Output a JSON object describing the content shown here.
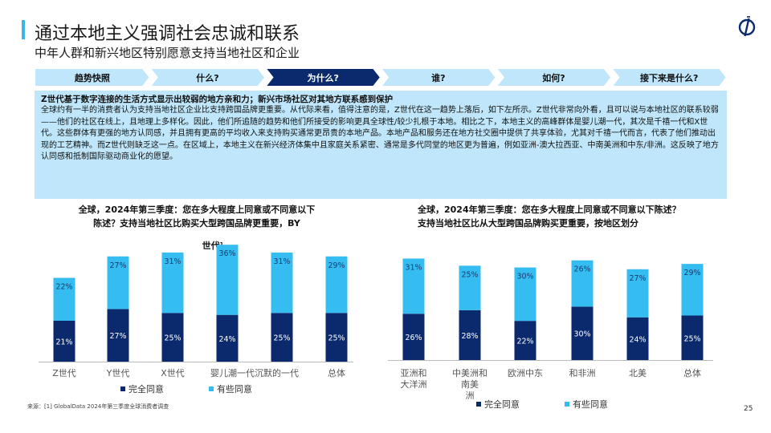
{
  "header": {
    "title": "通过本地主义强调社会忠诚和联系",
    "subtitle": "中年人群和新兴地区特别愿意支持当地社区和企业"
  },
  "nav": {
    "steps": [
      {
        "label": "趋势快照",
        "active": false
      },
      {
        "label": "什么?",
        "active": false
      },
      {
        "label": "为什么?",
        "active": true
      },
      {
        "label": "谁?",
        "active": false
      },
      {
        "label": "如何?",
        "active": false
      },
      {
        "label": "接下来是什么?",
        "active": false
      }
    ]
  },
  "summary": {
    "heading": "Z世代基于数字连接的生活方式显示出较弱的地方亲和力；新兴市场社区对其地方联系感到保护",
    "body": "全球约有一半的消费者认为支持当地社区企业比支持跨国品牌更重要。从代际来看，值得注意的是，Z世代在这一趋势上落后，如下左所示。Z世代非常向外看，且可以说与本地社区的联系较弱——他们的社区在线上，且地理上多样化。因此，他们所追随的趋势和他们所接受的影响更具全球性/较少扎根于本地。相比之下，本地主义的高峰群体是婴儿潮一代，其次是千禧一代和X世代。这些群体有更强的地方认同感，并且拥有更高的平均收入来支持购买通常更昂贵的本地产品。本地产品和服务还在地方社交圈中提供了共享体验，尤其对千禧一代而言，代表了他们推动出现的工艺精神。而Z世代则缺乏这一点。在区域上，本地主义在新兴经济体集中且家庭关系紧密、通常是多代同堂的地区更为普遍，例如亚洲-澳大拉西亚、中南美洲和中东/非洲。这反映了地方认同感和抵制国际驱动商业化的愿望。"
  },
  "colors": {
    "dark": "#0b2a6e",
    "light": "#35bdf2",
    "accent": "#3cb4e5",
    "nav_active": "#0b2a6e",
    "nav_inactive": "#bfe6fa"
  },
  "chart_data": [
    {
      "type": "bar",
      "stacked": true,
      "title": "全球，2024年第三季度：您在多大程度上同意或不同意以下陈述？支持当地社区比购买大型跨国品牌更重要，BY",
      "title_suffix": "世代¹",
      "categories": [
        "Z世代",
        "Y世代",
        "X世代",
        "婴儿潮一代",
        "沉默的一代",
        "总体"
      ],
      "series": [
        {
          "name": "完全同意",
          "values": [
            21,
            27,
            25,
            24,
            25,
            25
          ]
        },
        {
          "name": "有些同意",
          "values": [
            22,
            27,
            31,
            36,
            31,
            29
          ]
        }
      ],
      "ylim": [
        0,
        60
      ],
      "legend": "bottom",
      "grid": false
    },
    {
      "type": "bar",
      "stacked": true,
      "title": "全球，2024年第三季度：您在多大程度上同意或不同意以下陈述？支持当地社区比从大型跨国品牌购买更重要，按地区划分",
      "categories": [
        "亚洲和大洋洲",
        "中美洲和南美洲",
        "欧洲中东",
        "和非洲",
        "北美",
        "总体"
      ],
      "series": [
        {
          "name": "完全同意",
          "values": [
            26,
            28,
            22,
            30,
            24,
            25
          ]
        },
        {
          "name": "有些同意",
          "values": [
            31,
            25,
            30,
            26,
            27,
            29
          ]
        }
      ],
      "ylim": [
        0,
        60
      ],
      "legend": "bottom",
      "grid": false
    }
  ],
  "left_axis_labels": [
    "Z世代",
    "Y世代",
    "X世代",
    "婴儿潮一代沉默的一代",
    "",
    "总体"
  ],
  "right_axis_labels": [
    [
      "亚洲和",
      "大洋洲"
    ],
    [
      "中美洲和",
      "南美",
      "洲"
    ],
    [
      "欧洲中东"
    ],
    [
      "和非洲"
    ],
    [
      "北美"
    ],
    [
      "总体"
    ]
  ],
  "footer": {
    "source": "来源：[1] GlobalData 2024年第三季度全球消费者调查",
    "page": "25"
  }
}
